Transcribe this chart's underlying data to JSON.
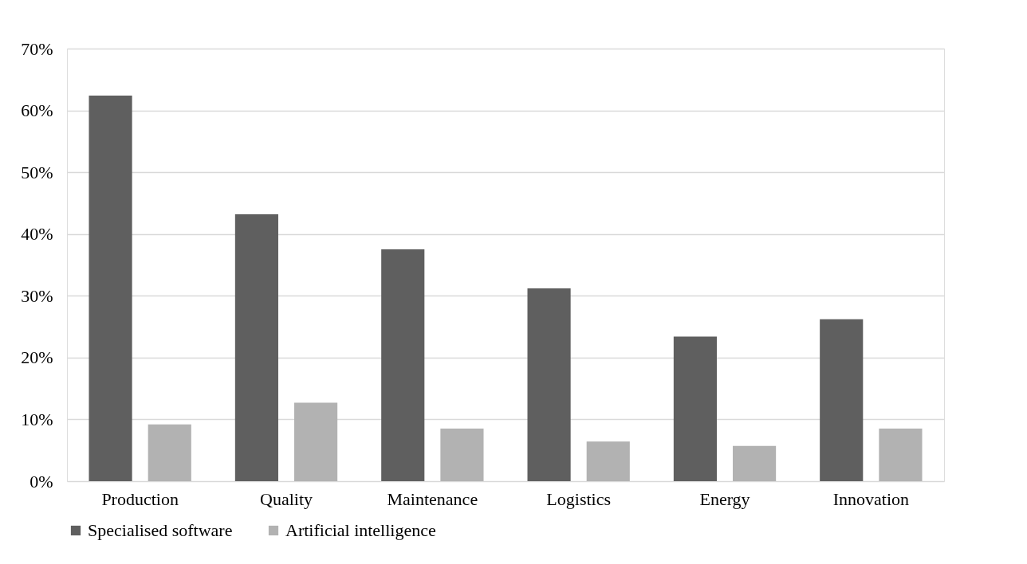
{
  "chart_data": {
    "type": "bar",
    "categories": [
      "Production",
      "Quality",
      "Maintenance",
      "Logistics",
      "Energy",
      "Innovation"
    ],
    "series": [
      {
        "name": "Specialised software",
        "color": "#5f5f5f",
        "values": [
          62.4,
          43.2,
          37.5,
          31.2,
          23.4,
          26.2
        ]
      },
      {
        "name": "Artificial intelligence",
        "color": "#b2b2b2",
        "values": [
          9.2,
          12.7,
          8.5,
          6.4,
          5.7,
          8.5
        ]
      }
    ],
    "ylim": [
      0,
      70
    ],
    "yticks": [
      {
        "value": 0,
        "label": "0%"
      },
      {
        "value": 10,
        "label": "10%"
      },
      {
        "value": 20,
        "label": "20%"
      },
      {
        "value": 30,
        "label": "30%"
      },
      {
        "value": 40,
        "label": "40%"
      },
      {
        "value": 50,
        "label": "50%"
      },
      {
        "value": 60,
        "label": "60%"
      },
      {
        "value": 70,
        "label": "70%"
      }
    ],
    "grid": "y",
    "legend": "bottom"
  }
}
